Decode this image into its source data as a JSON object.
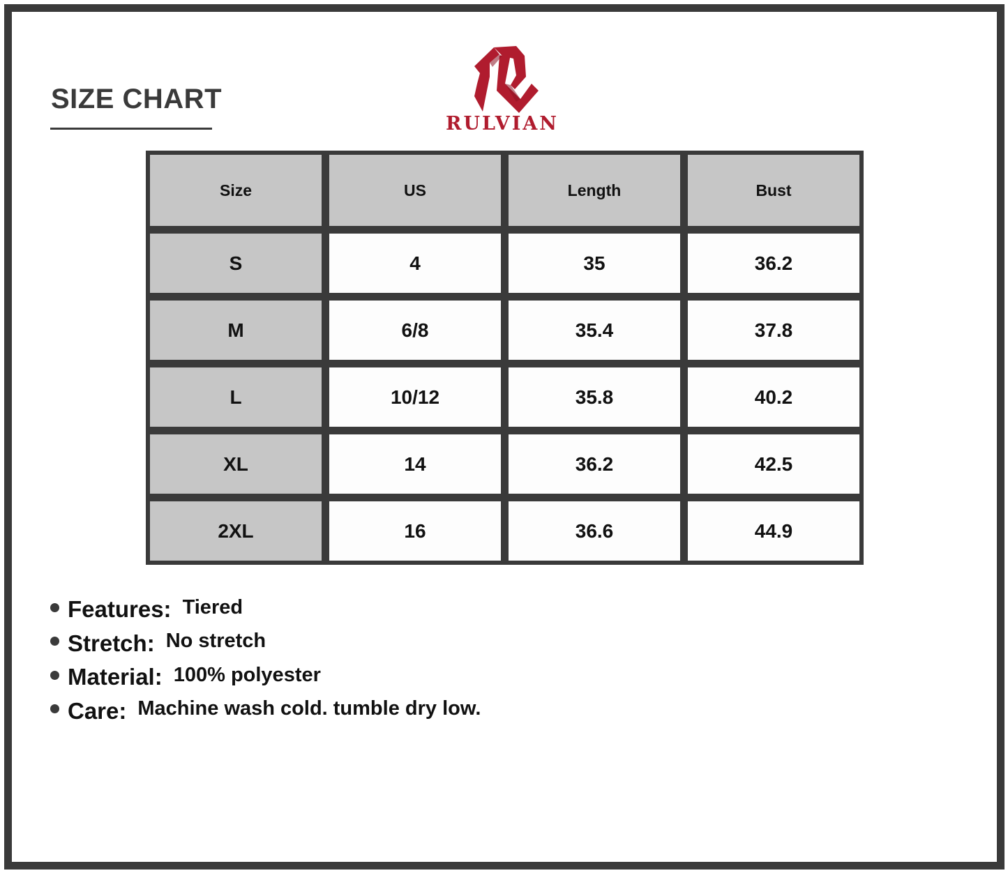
{
  "title": "SIZE CHART",
  "brand": {
    "name": "RULVIAN",
    "color": "#b01c2e"
  },
  "colors": {
    "border": "#3a3a3a",
    "header_fill": "#c6c6c6"
  },
  "table": {
    "headers": [
      "Size",
      "US",
      "Length",
      "Bust"
    ],
    "rows": [
      [
        "S",
        "4",
        "35",
        "36.2"
      ],
      [
        "M",
        "6/8",
        "35.4",
        "37.8"
      ],
      [
        "L",
        "10/12",
        "35.8",
        "40.2"
      ],
      [
        "XL",
        "14",
        "36.2",
        "42.5"
      ],
      [
        "2XL",
        "16",
        "36.6",
        "44.9"
      ]
    ]
  },
  "features": [
    {
      "label": "Features:",
      "value": "Tiered"
    },
    {
      "label": "Stretch:",
      "value": "No stretch"
    },
    {
      "label": "Material:",
      "value": "100% polyester"
    },
    {
      "label": "Care:",
      "value": "Machine wash cold. tumble dry low."
    }
  ]
}
